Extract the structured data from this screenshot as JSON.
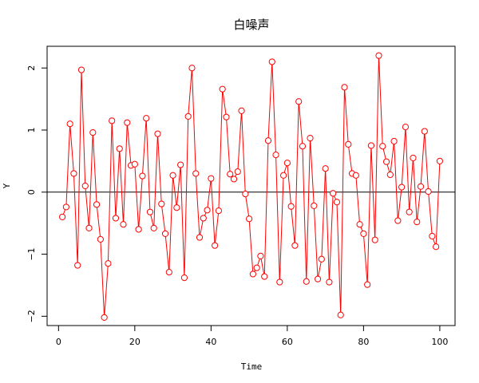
{
  "chart_data": {
    "type": "line",
    "title": "白噪声",
    "xlabel": "Time",
    "ylabel": "Y",
    "xlim": [
      -3,
      104
    ],
    "ylim": [
      -2.15,
      2.35
    ],
    "x_ticks": [
      0,
      20,
      40,
      60,
      80,
      100
    ],
    "y_ticks": [
      -2,
      -1,
      0,
      1,
      2
    ],
    "reference_line": 0,
    "grid": false,
    "legend": "none",
    "series_color": "#ff0000",
    "marker": "open-circle",
    "x": [
      1,
      2,
      3,
      4,
      5,
      6,
      7,
      8,
      9,
      10,
      11,
      12,
      13,
      14,
      15,
      16,
      17,
      18,
      19,
      20,
      21,
      22,
      23,
      24,
      25,
      26,
      27,
      28,
      29,
      30,
      31,
      32,
      33,
      34,
      35,
      36,
      37,
      38,
      39,
      40,
      41,
      42,
      43,
      44,
      45,
      46,
      47,
      48,
      49,
      50,
      51,
      52,
      53,
      54,
      55,
      56,
      57,
      58,
      59,
      60,
      61,
      62,
      63,
      64,
      65,
      66,
      67,
      68,
      69,
      70,
      71,
      72,
      73,
      74,
      75,
      76,
      77,
      78,
      79,
      80,
      81,
      82,
      83,
      84,
      85,
      86,
      87,
      88,
      89,
      90,
      91,
      92,
      93,
      94,
      95,
      96,
      97,
      98,
      99,
      100
    ],
    "series": [
      {
        "values": [
          -0.4,
          -0.24,
          1.1,
          0.3,
          -1.18,
          1.97,
          0.1,
          -0.58,
          0.96,
          -0.2,
          -0.76,
          -2.02,
          -1.15,
          1.15,
          -0.42,
          0.7,
          -0.52,
          1.12,
          0.43,
          0.45,
          -0.6,
          0.26,
          1.19,
          -0.32,
          -0.58,
          0.94,
          -0.19,
          -0.67,
          -1.29,
          0.27,
          -0.25,
          0.44,
          -1.38,
          1.22,
          2.0,
          0.3,
          -0.73,
          -0.42,
          -0.29,
          0.22,
          -0.86,
          -0.3,
          1.66,
          1.21,
          0.29,
          0.21,
          0.33,
          1.31,
          -0.03,
          -0.43,
          -1.32,
          -1.22,
          -1.03,
          -1.36,
          0.83,
          2.1,
          0.6,
          -1.45,
          0.27,
          0.47,
          -0.23,
          -0.86,
          1.46,
          0.74,
          -1.44,
          0.87,
          -0.22,
          -1.4,
          -1.08,
          0.38,
          -1.45,
          -0.02,
          -0.16,
          -1.98,
          1.69,
          0.77,
          0.3,
          0.27,
          -0.52,
          -0.67,
          -1.49,
          0.75,
          -0.77,
          2.2,
          0.74,
          0.49,
          0.28,
          0.82,
          -0.46,
          0.08,
          1.05,
          -0.32,
          0.55,
          -0.48,
          0.09,
          0.98,
          0.01,
          -0.71,
          -0.88,
          0.5
        ]
      }
    ]
  }
}
